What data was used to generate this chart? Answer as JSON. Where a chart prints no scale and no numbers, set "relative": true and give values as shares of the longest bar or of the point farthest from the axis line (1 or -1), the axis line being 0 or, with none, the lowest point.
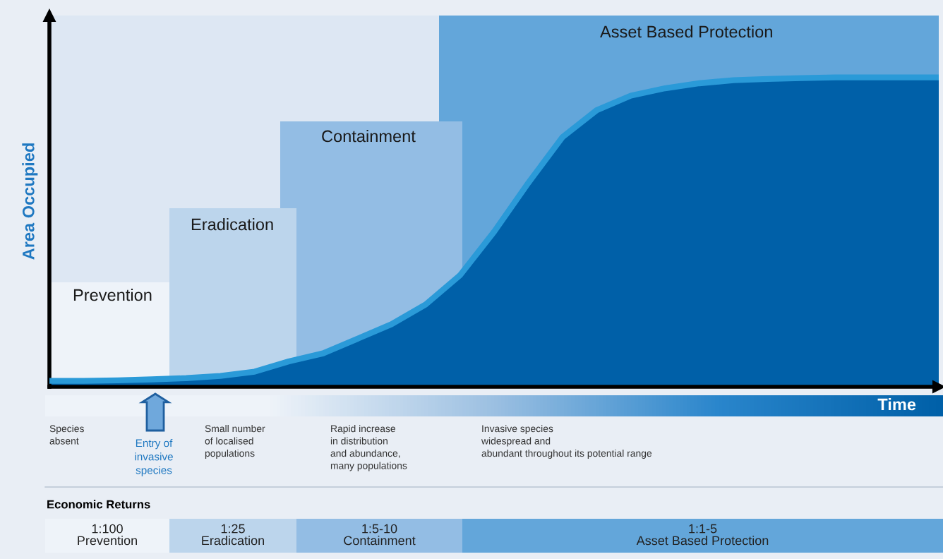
{
  "chart_data": {
    "type": "area",
    "relative": true,
    "ylabel": "Area Occupied",
    "xlabel": "Time",
    "categories": [
      null,
      null,
      null,
      null,
      null,
      null,
      null,
      null,
      null,
      null,
      null,
      null,
      null,
      null,
      null,
      null,
      null,
      null,
      null,
      null,
      null,
      null,
      null,
      null,
      null,
      null,
      null
    ],
    "series": [
      {
        "color": "#0060a8",
        "values": [
          0.019,
          0.019,
          0.021,
          0.024,
          0.028,
          0.035,
          0.049,
          0.082,
          0.108,
          0.155,
          0.202,
          0.266,
          0.36,
          0.501,
          0.659,
          0.807,
          0.894,
          0.941,
          0.965,
          0.981,
          0.991,
          0.995,
          0.998,
          1,
          1,
          1,
          1
        ]
      }
    ],
    "annotations": [
      "Prevention",
      "Eradication",
      "Containment",
      "Asset Based Protection",
      "Species\nabsent",
      "Entry of\ninvasive\nspecies",
      "Small number\nof localised\npopulations",
      "Rapid increase\nin distribution\nand abundance,\nmany populations",
      "Invasive species\nwidespread and\nabundant throughout its potential range",
      "Economic Returns",
      "1:100\nPrevention",
      "1:25\nEradication",
      "1:5-10\nContainment",
      "1:1-5\nAsset Based Protection"
    ]
  }
}
